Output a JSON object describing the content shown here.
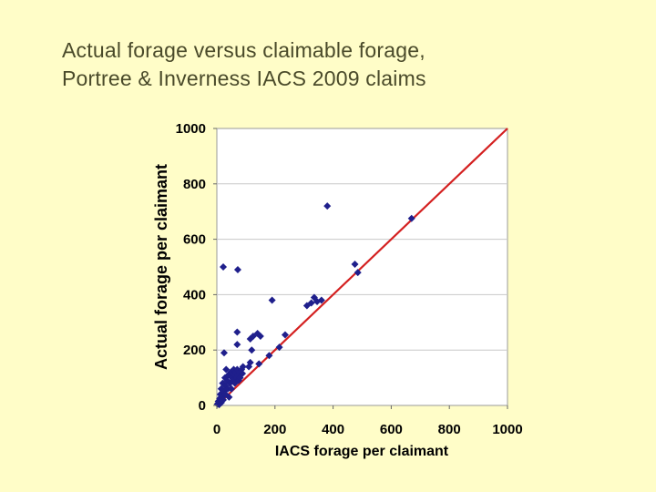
{
  "slide": {
    "title_line1": "Actual forage versus claimable forage,",
    "title_line2": "Portree & Inverness IACS 2009 claims"
  },
  "chart_data": {
    "type": "scatter",
    "title": "Actual forage versus claimable forage, Portree & Inverness IACS 2009 claims",
    "xlabel": "IACS forage per claimant",
    "ylabel": "Actual forage per claimant",
    "xlim": [
      0,
      1000
    ],
    "ylim": [
      0,
      1000
    ],
    "xticks": [
      0,
      200,
      400,
      600,
      800,
      1000
    ],
    "yticks": [
      0,
      200,
      400,
      600,
      800,
      1000
    ],
    "grid": "horizontal",
    "legend": "none",
    "colors": {
      "points": "#1f1f8c",
      "line": "#d42020",
      "plot_bg": "#ffffff",
      "page_bg": "#fffdc8"
    },
    "reference_line": {
      "x": [
        0,
        1000
      ],
      "y": [
        0,
        1000
      ]
    },
    "points": [
      {
        "x": 2,
        "y": 5
      },
      {
        "x": 5,
        "y": 15
      },
      {
        "x": 8,
        "y": 3
      },
      {
        "x": 10,
        "y": 25
      },
      {
        "x": 12,
        "y": 40
      },
      {
        "x": 15,
        "y": 10
      },
      {
        "x": 15,
        "y": 60
      },
      {
        "x": 18,
        "y": 30
      },
      {
        "x": 20,
        "y": 80
      },
      {
        "x": 22,
        "y": 20
      },
      {
        "x": 25,
        "y": 50
      },
      {
        "x": 28,
        "y": 100
      },
      {
        "x": 30,
        "y": 70
      },
      {
        "x": 30,
        "y": 40
      },
      {
        "x": 32,
        "y": 130
      },
      {
        "x": 35,
        "y": 90
      },
      {
        "x": 38,
        "y": 60
      },
      {
        "x": 40,
        "y": 110
      },
      {
        "x": 42,
        "y": 30
      },
      {
        "x": 45,
        "y": 80
      },
      {
        "x": 48,
        "y": 120
      },
      {
        "x": 50,
        "y": 60
      },
      {
        "x": 52,
        "y": 100
      },
      {
        "x": 55,
        "y": 90
      },
      {
        "x": 58,
        "y": 130
      },
      {
        "x": 60,
        "y": 110
      },
      {
        "x": 62,
        "y": 80
      },
      {
        "x": 65,
        "y": 120
      },
      {
        "x": 68,
        "y": 100
      },
      {
        "x": 70,
        "y": 130
      },
      {
        "x": 72,
        "y": 110
      },
      {
        "x": 75,
        "y": 90
      },
      {
        "x": 78,
        "y": 120
      },
      {
        "x": 80,
        "y": 100
      },
      {
        "x": 85,
        "y": 130
      },
      {
        "x": 88,
        "y": 115
      },
      {
        "x": 90,
        "y": 140
      },
      {
        "x": 25,
        "y": 190
      },
      {
        "x": 70,
        "y": 220
      },
      {
        "x": 70,
        "y": 265
      },
      {
        "x": 110,
        "y": 140
      },
      {
        "x": 115,
        "y": 155
      },
      {
        "x": 120,
        "y": 200
      },
      {
        "x": 115,
        "y": 240
      },
      {
        "x": 125,
        "y": 250
      },
      {
        "x": 140,
        "y": 260
      },
      {
        "x": 150,
        "y": 250
      },
      {
        "x": 145,
        "y": 150
      },
      {
        "x": 180,
        "y": 180
      },
      {
        "x": 215,
        "y": 210
      },
      {
        "x": 235,
        "y": 255
      },
      {
        "x": 22,
        "y": 500
      },
      {
        "x": 72,
        "y": 490
      },
      {
        "x": 190,
        "y": 380
      },
      {
        "x": 310,
        "y": 360
      },
      {
        "x": 325,
        "y": 370
      },
      {
        "x": 335,
        "y": 390
      },
      {
        "x": 345,
        "y": 375
      },
      {
        "x": 360,
        "y": 380
      },
      {
        "x": 380,
        "y": 720
      },
      {
        "x": 475,
        "y": 510
      },
      {
        "x": 485,
        "y": 480
      },
      {
        "x": 670,
        "y": 675
      }
    ]
  }
}
